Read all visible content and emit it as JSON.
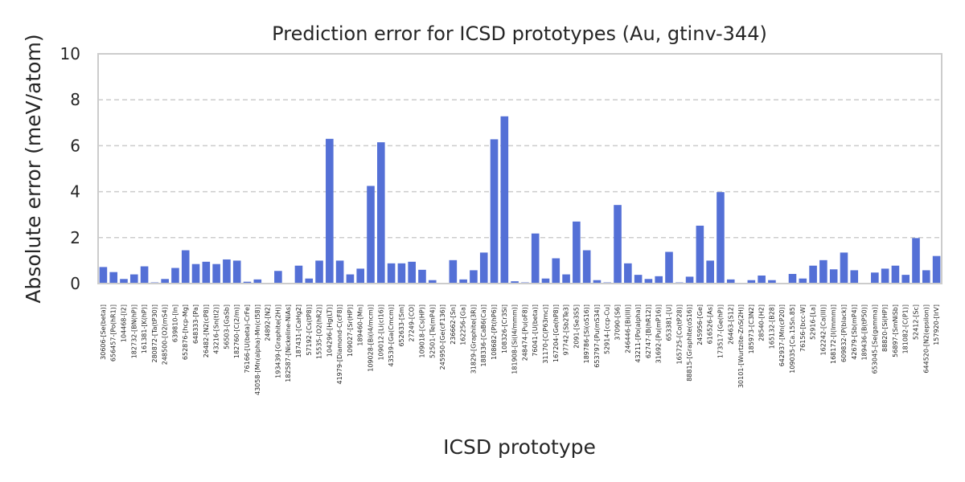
{
  "chart_data": {
    "type": "bar",
    "title": "Prediction error for ICSD prototypes (Au, gtinv-344)",
    "xlabel": "ICSD prototype",
    "ylabel": "Absolute error (meV/atom)",
    "ylim": [
      0,
      10
    ],
    "yticks": [
      0,
      2,
      4,
      6,
      8,
      10
    ],
    "grid": "y-dashed",
    "bar_color": "#5470d6",
    "categories": [
      "30606-[Se(beta)]",
      "656457-[Po(hR1)]",
      "104468-[I2]",
      "182732-[BN(hP)]",
      "161381-[K(hP)]",
      "280872-[Ta(tP30)]",
      "248500-[O2(mS4)]",
      "639810-[In]",
      "652876-[hcp-Mg]",
      "648333-[Pa]",
      "26482-[N2(cP8)]",
      "43216-[Sn(tI2)]",
      "56503-[GaSb]",
      "182760-[C(2/m)]",
      "76166-[U(beta)-CrFe]",
      "43058-[Mn(alpha)-Mn(cI58)]",
      "24892-[N2]",
      "193439-[Graphite(2H)]",
      "182587-[Nickeline-NiAs]",
      "187431-[CaHg2]",
      "57192-[Cs(tP8)]",
      "15535-[O2(hR2)]",
      "104296-[Hg(LT)]",
      "41979-[Diamond-C(cF8)]",
      "109027-[Sr(HP)]",
      "189460-[Mn]",
      "109028-[Bi(I4/mcm)]",
      "109012-[Li(cI16)]",
      "43539-[Ga(Cmcm)]",
      "652633-[Sm]",
      "27249-[CO]",
      "109018-[Cs(HP)]",
      "52501-[Te(mP4)]",
      "245950-[Ge(cF136)]",
      "236662-[Sn]",
      "162256-[Ga]",
      "31829-[Graphite(3R)]",
      "188336-[CaB6(Ca)]",
      "108682-[Pt(hP6)]",
      "108326-[Cr3Si]",
      "181908-[Si(I4/mmm)]",
      "248474-[Pu(oF8)]",
      "76041-[U(beta)]",
      "31170-[C(P63mc)]",
      "167204-[Ge(hP8)]",
      "97742-[Sb2Te3]",
      "2091-[Se3S5]",
      "189786-[Si(oS16)]",
      "653797-[Pu(mS34)]",
      "52914-[ccp-Cu]",
      "37090-[S6]",
      "246446-[Bi(III)]",
      "43211-[Po(alpha)]",
      "62747-[B(hR12)]",
      "31692-[Pu(mP16)]",
      "653381-[U]",
      "165725-[Co(tP28)]",
      "88815-[Graphite(oS16)]",
      "245956-[Ge]",
      "616526-[As]",
      "173517-[Ge(hP)]",
      "26463-[S12]",
      "30101-[Wurtzite-ZnS(2H)]",
      "185973-[C3N2]",
      "28540-[H2]",
      "165132-[B28]",
      "642937-[Mn(cP20)]",
      "109035-[Ca.15Sn.85]",
      "76156-[bcc-W]",
      "52916-[La]",
      "162242-[Ca(III)]",
      "168172-[I(Immm)]",
      "609832-[P(black)]",
      "42679-[Sb(mP4)]",
      "189436-[B(tP50)]",
      "653045-[Se(gamma)]",
      "88820-[Si(HP)]",
      "56897-[SmNiSb]",
      "181082-[C(P1)]",
      "52412-[Sc]",
      "644520-[N2(epsilon)]",
      "157920-[IrV]"
    ],
    "values": [
      0.72,
      0.5,
      0.2,
      0.4,
      0.75,
      0.05,
      0.2,
      0.68,
      1.45,
      0.85,
      0.95,
      0.85,
      1.05,
      1.0,
      0.08,
      0.18,
      0.0,
      0.55,
      0.0,
      0.78,
      0.22,
      1.0,
      6.3,
      1.0,
      0.4,
      0.65,
      4.25,
      6.15,
      0.88,
      0.88,
      0.95,
      0.6,
      0.15,
      0.0,
      1.02,
      0.18,
      0.58,
      1.35,
      6.28,
      7.28,
      0.1,
      0.05,
      2.18,
      0.22,
      1.1,
      0.4,
      2.7,
      1.45,
      0.15,
      0.05,
      3.42,
      0.88,
      0.38,
      0.2,
      0.32,
      1.38,
      0.05,
      0.3,
      2.52,
      1.0,
      3.98,
      0.18,
      0.0,
      0.15,
      0.35,
      0.15,
      0.0,
      0.42,
      0.22,
      0.78,
      1.02,
      0.62,
      1.35,
      0.58,
      0.0,
      0.48,
      0.65,
      0.78,
      0.38,
      1.98,
      0.58,
      1.2
    ]
  }
}
